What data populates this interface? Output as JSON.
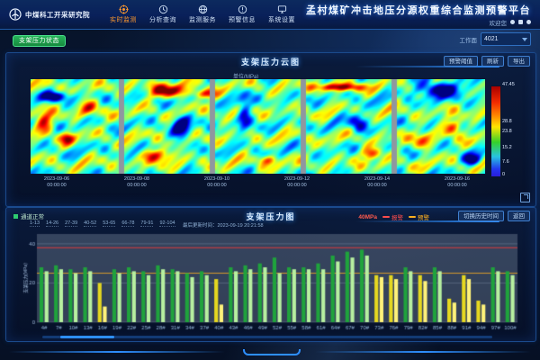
{
  "app": {
    "logo_text": "中煤科工开采研究院",
    "title": "孟村煤矿冲击地压分源权重综合监测预警平台",
    "welcome": "欢迎您",
    "menu": [
      {
        "label": "实时监测",
        "active": true
      },
      {
        "label": "分析查询",
        "active": false
      },
      {
        "label": "监测服务",
        "active": false
      },
      {
        "label": "预警信息",
        "active": false
      },
      {
        "label": "系统设置",
        "active": false
      }
    ]
  },
  "toolbar": {
    "status_button": "支架压力状态",
    "workface_label": "工作面",
    "workface_value": "4021"
  },
  "cloud": {
    "title": "支架压力云图",
    "unit_note": "单位(MPa)",
    "buttons": [
      "预警阈值",
      "刷新",
      "导出"
    ],
    "colorbar_ticks": [
      "47.45",
      "28.8",
      "23.8",
      "15.2",
      "7.6",
      "0"
    ],
    "dates": [
      {
        "d": "2023-09-06",
        "t": "00:00:00"
      },
      {
        "d": "2023-09-08",
        "t": "00:00:00"
      },
      {
        "d": "2023-09-10",
        "t": "00:00:00"
      },
      {
        "d": "2023-09-12",
        "t": "00:00:00"
      },
      {
        "d": "2023-09-14",
        "t": "00:00:00"
      },
      {
        "d": "2023-09-16",
        "t": "00:00:00"
      }
    ]
  },
  "pressure": {
    "title": "支架压力图",
    "status": "通道正常",
    "ranges": [
      "1-13",
      "14-26",
      "27-39",
      "40-52",
      "53-65",
      "66-78",
      "79-91",
      "92-104"
    ],
    "updated": "最后更新时间：2023-09-19 20:21:58",
    "unit_badge": "40MPa",
    "legend": [
      {
        "label": "报警",
        "color": "#ff4d4d"
      },
      {
        "label": "预警",
        "color": "#ffb020"
      }
    ],
    "buttons": [
      "切换历史时间",
      "返回"
    ]
  },
  "chart_data": [
    {
      "type": "heatmap",
      "title": "支架压力云图",
      "colormap": "jet",
      "value_range": [
        0,
        47.45
      ],
      "colorbar_ticks": [
        47.45,
        28.8,
        23.8,
        15.2,
        7.6,
        0
      ],
      "x_dates": [
        "2023-09-06 00:00:00",
        "2023-09-08 00:00:00",
        "2023-09-10 00:00:00",
        "2023-09-12 00:00:00",
        "2023-09-14 00:00:00",
        "2023-09-16 00:00:00"
      ],
      "panels": 5,
      "separator_color": "#8f979f",
      "spots": [
        {
          "x": 0.03,
          "y": 0.45,
          "rx": 0.02,
          "ry": 0.1,
          "s": 0.45
        },
        {
          "x": 0.08,
          "y": 0.62,
          "rx": 0.015,
          "ry": 0.06,
          "s": 0.4
        },
        {
          "x": 0.05,
          "y": 0.18,
          "rx": 0.03,
          "ry": 0.05,
          "s": -0.5
        },
        {
          "x": 0.13,
          "y": 0.3,
          "rx": 0.02,
          "ry": 0.08,
          "s": 0.35
        },
        {
          "x": 0.3,
          "y": 0.12,
          "rx": 0.04,
          "ry": 0.07,
          "s": 0.5
        },
        {
          "x": 0.38,
          "y": 0.15,
          "rx": 0.025,
          "ry": 0.05,
          "s": 0.45
        },
        {
          "x": 0.33,
          "y": 0.5,
          "rx": 0.02,
          "ry": 0.12,
          "s": -0.55
        },
        {
          "x": 0.28,
          "y": 0.8,
          "rx": 0.03,
          "ry": 0.07,
          "s": 0.45
        },
        {
          "x": 0.52,
          "y": 0.85,
          "rx": 0.02,
          "ry": 0.05,
          "s": 0.35
        },
        {
          "x": 0.47,
          "y": 0.35,
          "rx": 0.015,
          "ry": 0.2,
          "s": -0.35
        },
        {
          "x": 0.68,
          "y": 0.08,
          "rx": 0.05,
          "ry": 0.04,
          "s": 0.5
        },
        {
          "x": 0.72,
          "y": 0.45,
          "rx": 0.02,
          "ry": 0.1,
          "s": -0.4
        },
        {
          "x": 0.75,
          "y": 0.78,
          "rx": 0.025,
          "ry": 0.06,
          "s": 0.4
        },
        {
          "x": 0.9,
          "y": 0.1,
          "rx": 0.05,
          "ry": 0.08,
          "s": -0.6
        },
        {
          "x": 0.93,
          "y": 0.5,
          "rx": 0.02,
          "ry": 0.08,
          "s": 0.45
        },
        {
          "x": 0.97,
          "y": 0.85,
          "rx": 0.02,
          "ry": 0.06,
          "s": -0.5
        },
        {
          "x": 0.86,
          "y": 0.65,
          "rx": 0.02,
          "ry": 0.1,
          "s": 0.3
        }
      ]
    },
    {
      "type": "bar",
      "title": "支架压力图",
      "ylabel": "支架压力(MPa)",
      "yticks": [
        0,
        20,
        40
      ],
      "ylim": [
        0,
        45
      ],
      "alarm_line": 38,
      "warn_line": 25,
      "alarm_color": "#e23c3c",
      "warn_color": "#d99b2c",
      "bar_colors": {
        "g": [
          "#1fa33c",
          "#b7f0a0"
        ],
        "y": [
          "#e6d820",
          "#fff27a"
        ]
      },
      "groups": [
        [
          "4#",
          28,
          26,
          "g"
        ],
        [
          "7#",
          29,
          27,
          "g"
        ],
        [
          "10#",
          27,
          25,
          "g"
        ],
        [
          "13#",
          28,
          26,
          "g"
        ],
        [
          "16#",
          20,
          8,
          "y"
        ],
        [
          "19#",
          27,
          25,
          "g"
        ],
        [
          "22#",
          28,
          26,
          "g"
        ],
        [
          "25#",
          26,
          24,
          "g"
        ],
        [
          "28#",
          29,
          27,
          "g"
        ],
        [
          "31#",
          27,
          26,
          "g"
        ],
        [
          "34#",
          25,
          23,
          "g"
        ],
        [
          "37#",
          26,
          24,
          "g"
        ],
        [
          "40#",
          22,
          9,
          "y"
        ],
        [
          "43#",
          28,
          26,
          "g"
        ],
        [
          "46#",
          29,
          27,
          "g"
        ],
        [
          "49#",
          30,
          28,
          "g"
        ],
        [
          "52#",
          33,
          25,
          "g"
        ],
        [
          "55#",
          28,
          27,
          "g"
        ],
        [
          "58#",
          28,
          27,
          "g"
        ],
        [
          "61#",
          30,
          27,
          "g"
        ],
        [
          "64#",
          34,
          31,
          "g"
        ],
        [
          "67#",
          36,
          33,
          "g"
        ],
        [
          "70#",
          37,
          34,
          "g"
        ],
        [
          "73#",
          24,
          23,
          "y"
        ],
        [
          "76#",
          24,
          22,
          "y"
        ],
        [
          "79#",
          28,
          26,
          "g"
        ],
        [
          "82#",
          24,
          21,
          "y"
        ],
        [
          "85#",
          28,
          26,
          "g"
        ],
        [
          "88#",
          12,
          10,
          "y"
        ],
        [
          "91#",
          24,
          22,
          "y"
        ],
        [
          "94#",
          11,
          9,
          "y"
        ],
        [
          "97#",
          28,
          26,
          "g"
        ],
        [
          "100#",
          26,
          24,
          "g"
        ]
      ]
    }
  ]
}
